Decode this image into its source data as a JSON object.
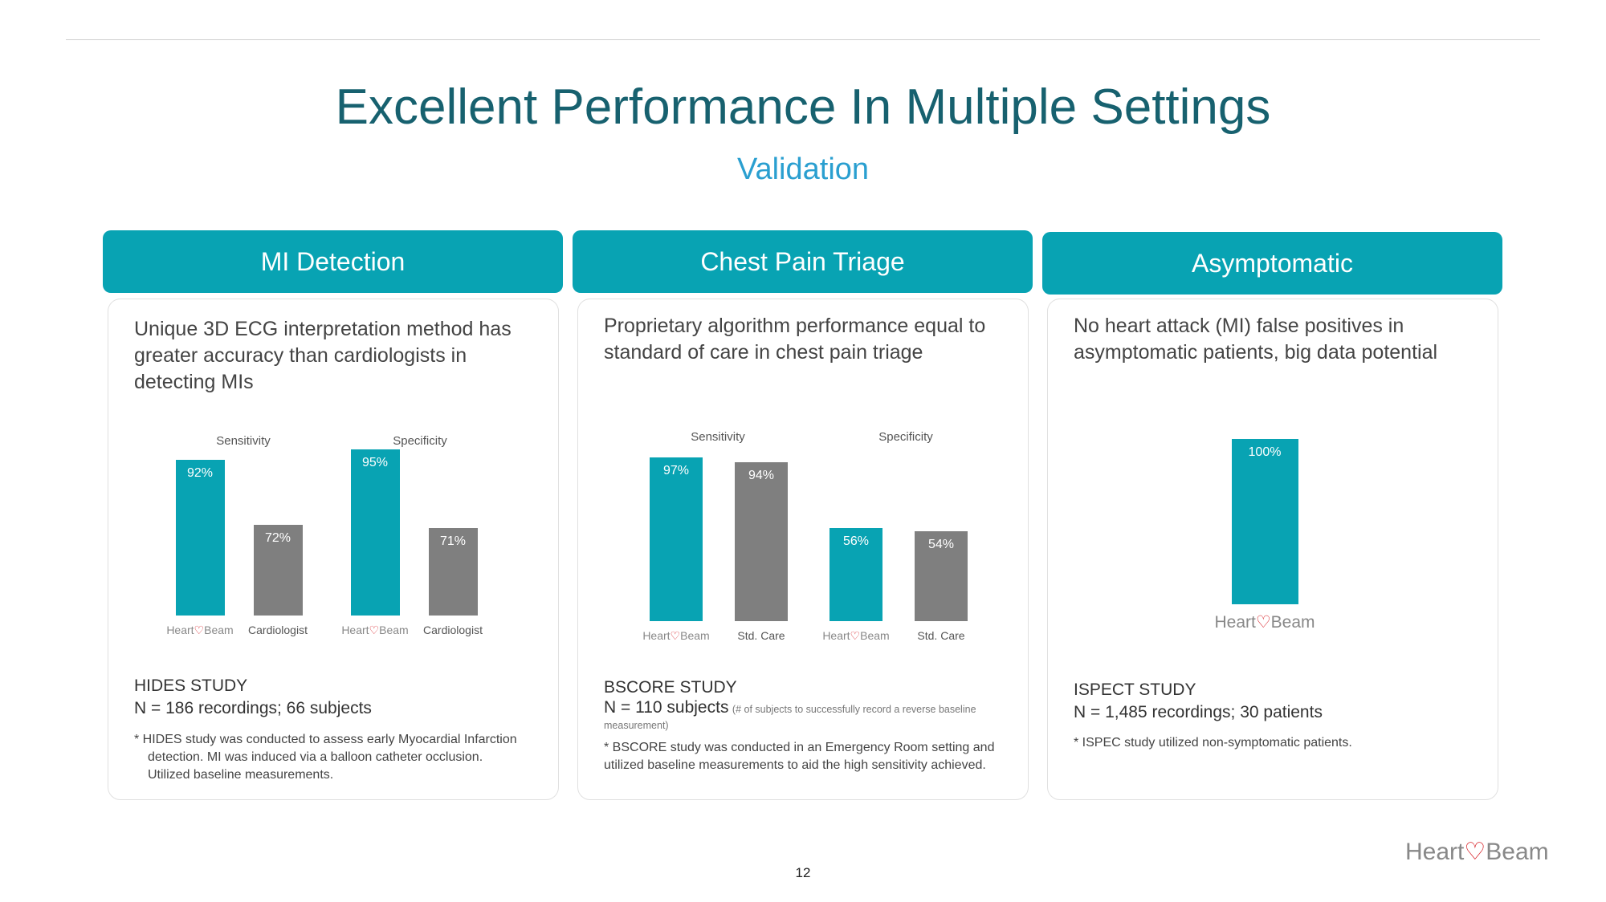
{
  "title": "Excellent Performance In Multiple Settings",
  "subtitle": "Validation",
  "colors": {
    "teal": "#08a3b3",
    "gray": "#7f7f7f",
    "title": "#17616f",
    "subtitle": "#2a9fd0",
    "logo_red": "#d8232a"
  },
  "cards": [
    {
      "header": "MI Detection",
      "lead": "Unique 3D ECG interpretation method has greater accuracy than cardiologists in detecting MIs",
      "study": "HIDES STUDY",
      "n": "N = 186 recordings; 66 subjects",
      "note": "*  HIDES study was conducted to assess early Myocardial Infarction detection. MI was induced via a balloon catheter occlusion. Utilized baseline measurements."
    },
    {
      "header": "Chest Pain Triage",
      "lead": "Proprietary algorithm performance equal to standard of care in chest pain triage",
      "study": "BSCORE STUDY",
      "n": "N = 110 subjects",
      "n_small": "(# of subjects to successfully record a reverse baseline measurement)",
      "note": "* BSCORE study was conducted in an Emergency Room setting and utilized baseline measurements to aid the high sensitivity achieved."
    },
    {
      "header": "Asymptomatic",
      "lead": "No heart attack (MI) false positives in asymptomatic patients, big data potential",
      "study": "ISPECT STUDY",
      "n": "N = 1,485 recordings; 30 patients",
      "note": "* ISPEC study utilized non-symptomatic patients."
    }
  ],
  "chart_data": [
    {
      "type": "bar",
      "groups": [
        "Sensitivity",
        "Specificity"
      ],
      "categories": [
        "HeartBeam",
        "Cardiologist",
        "HeartBeam",
        "Cardiologist"
      ],
      "values": [
        92,
        72,
        95,
        71
      ],
      "labels": [
        "92%",
        "72%",
        "95%",
        "71%"
      ],
      "colors": [
        "teal",
        "gray",
        "teal",
        "gray"
      ]
    },
    {
      "type": "bar",
      "groups": [
        "Sensitivity",
        "Specificity"
      ],
      "categories": [
        "HeartBeam",
        "Std. Care",
        "HeartBeam",
        "Std. Care"
      ],
      "values": [
        97,
        94,
        56,
        54
      ],
      "labels": [
        "97%",
        "94%",
        "56%",
        "54%"
      ],
      "colors": [
        "teal",
        "gray",
        "teal",
        "gray"
      ]
    },
    {
      "type": "bar",
      "groups": [],
      "categories": [
        "HeartBeam"
      ],
      "values": [
        100
      ],
      "labels": [
        "100%"
      ],
      "colors": [
        "teal"
      ]
    }
  ],
  "logo": {
    "left": "Heart",
    "right": "Beam"
  },
  "page_number": "12"
}
